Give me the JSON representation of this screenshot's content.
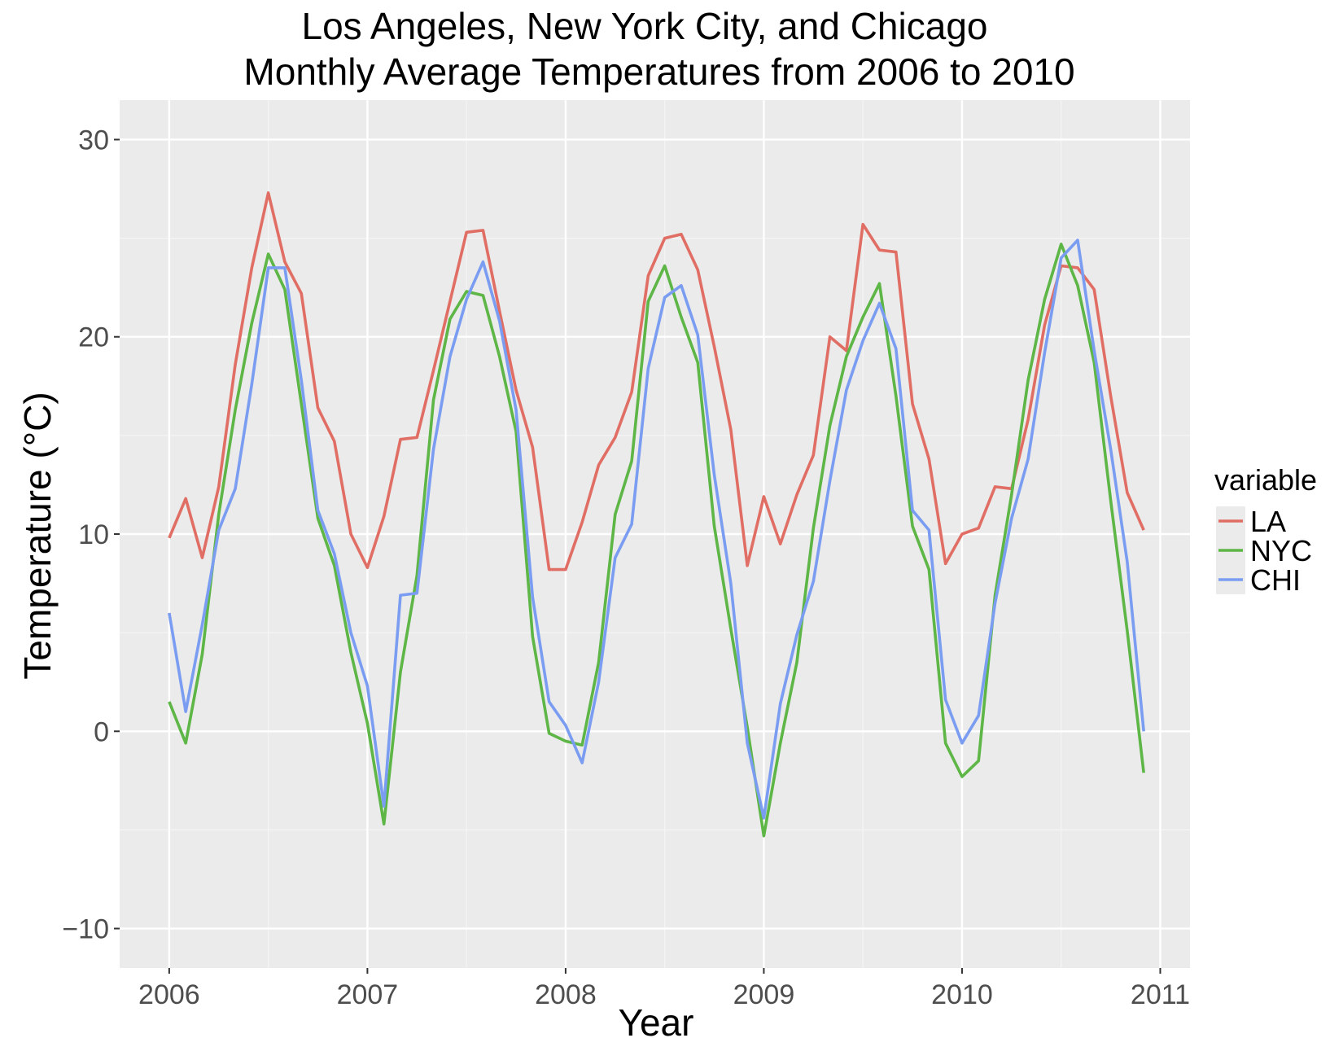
{
  "chart_data": {
    "type": "line",
    "title": [
      "Los Angeles, New York City, and Chicago",
      "Monthly Average Temperatures from 2006 to 2010"
    ],
    "xlabel": "Year",
    "ylabel": "Temperature (°C)",
    "xlim": [
      2005.75,
      2011.15
    ],
    "ylim": [
      -12,
      32
    ],
    "xticks": [
      2006,
      2007,
      2008,
      2009,
      2010,
      2011
    ],
    "xtick_labels": [
      "2006",
      "2007",
      "2008",
      "2009",
      "2010",
      "2011"
    ],
    "yticks": [
      -10,
      0,
      10,
      20,
      30
    ],
    "ytick_labels": [
      "−10",
      "0",
      "10",
      "20",
      "30"
    ],
    "grid": true,
    "background": "#ebebeb",
    "legend": {
      "title": "variable",
      "position": "right"
    },
    "x_start": 2006,
    "x_step": 0.083333,
    "series": [
      {
        "name": "LA",
        "color": "#e06e64",
        "values": [
          9.8,
          11.8,
          8.8,
          12.4,
          18.6,
          23.5,
          27.3,
          23.8,
          22.2,
          16.4,
          14.7,
          10.0,
          8.3,
          10.9,
          14.8,
          14.9,
          18.3,
          21.8,
          25.3,
          25.4,
          21.3,
          17.3,
          14.4,
          8.2,
          8.2,
          10.6,
          13.5,
          14.9,
          17.2,
          23.1,
          25.0,
          25.2,
          23.4,
          19.5,
          15.3,
          8.4,
          11.9,
          9.5,
          12.0,
          14.0,
          20.0,
          19.3,
          25.7,
          24.4,
          24.3,
          16.6,
          13.8,
          8.5,
          10.0,
          10.3,
          12.4,
          12.3,
          15.8,
          20.6,
          23.6,
          23.5,
          22.4,
          17.0,
          12.1,
          10.2
        ]
      },
      {
        "name": "NYC",
        "color": "#5db646",
        "values": [
          1.5,
          -0.6,
          3.9,
          11.0,
          16.3,
          20.7,
          24.2,
          22.4,
          16.6,
          10.8,
          8.4,
          4.0,
          0.4,
          -4.7,
          3.0,
          7.9,
          16.8,
          20.9,
          22.3,
          22.1,
          19.0,
          15.2,
          4.8,
          -0.1,
          -0.5,
          -0.7,
          3.5,
          11.0,
          13.7,
          21.8,
          23.6,
          21.0,
          18.7,
          10.4,
          5.2,
          0.2,
          -5.3,
          -0.6,
          3.5,
          10.3,
          15.5,
          19.0,
          21.0,
          22.7,
          17.0,
          10.4,
          8.2,
          -0.6,
          -2.3,
          -1.5,
          6.9,
          12.0,
          17.8,
          21.9,
          24.7,
          22.6,
          18.7,
          11.7,
          5.1,
          -2.1
        ]
      },
      {
        "name": "CHI",
        "color": "#7a9df2",
        "values": [
          6.0,
          1.0,
          5.4,
          10.2,
          12.3,
          17.6,
          23.5,
          23.5,
          17.8,
          11.2,
          9.0,
          5.0,
          2.3,
          -3.8,
          6.9,
          7.0,
          14.3,
          19.0,
          21.9,
          23.8,
          20.8,
          16.3,
          6.8,
          1.5,
          0.3,
          -1.6,
          2.5,
          8.8,
          10.5,
          18.4,
          22.0,
          22.6,
          20.1,
          13.0,
          7.5,
          -0.6,
          -4.4,
          1.4,
          4.9,
          7.6,
          12.7,
          17.3,
          19.8,
          21.7,
          19.4,
          11.2,
          10.2,
          1.6,
          -0.6,
          0.8,
          6.5,
          10.8,
          13.8,
          19.2,
          24.0,
          24.9,
          19.3,
          14.3,
          8.6,
          0.0
        ]
      }
    ]
  }
}
